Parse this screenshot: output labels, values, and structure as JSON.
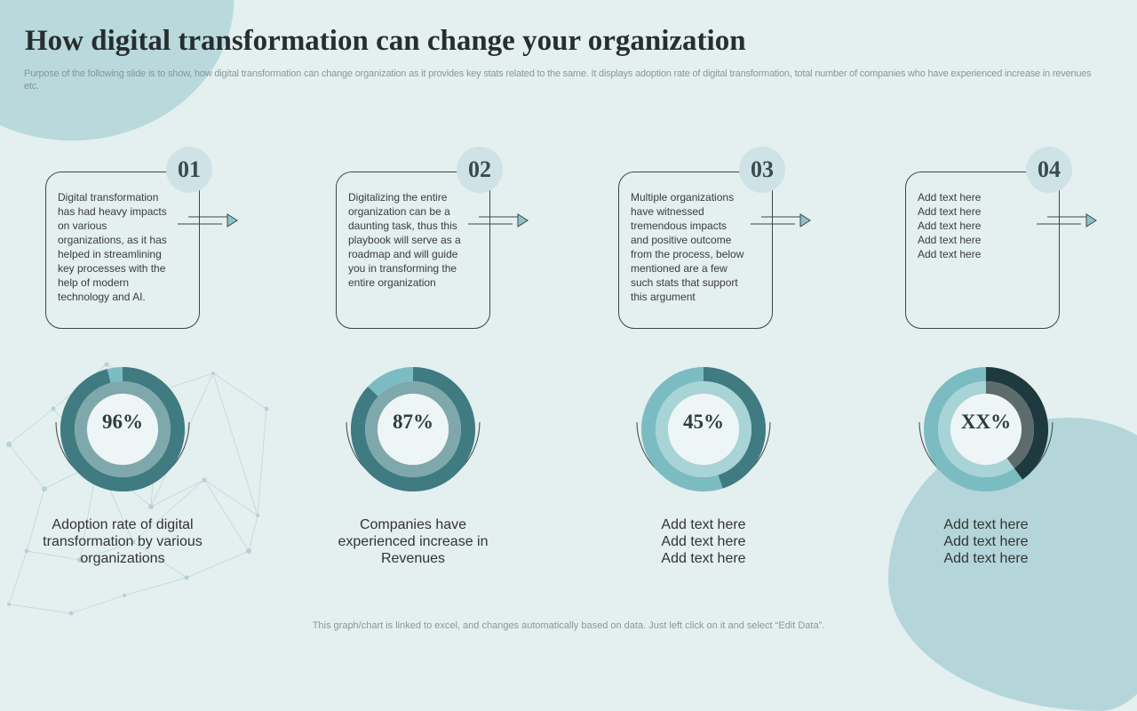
{
  "title": "How digital transformation  can change your organization",
  "subtitle": "Purpose of the following slide is to show,  how digital transformation can change organization as it provides key stats related to the same. It displays adoption rate of digital transformation, total number of companies who have experienced increase in revenues etc.",
  "colors": {
    "background": "#e4eff0",
    "dark_teal": "#3f7b80",
    "light_teal": "#7bbcc2",
    "darkest": "#1e3a3e",
    "grey_segment": "#5d6b6d"
  },
  "cards": [
    {
      "number": "01",
      "text": "Digital transformation has had heavy impacts on various organizations, as it has helped in streamlining key processes  with the help of modern technology and AI."
    },
    {
      "number": "02",
      "text": "Digitalizing the entire organization can be a daunting task, thus this playbook will serve as a roadmap and will guide you in transforming the entire organization"
    },
    {
      "number": "03",
      "text": "Multiple organizations have witnessed tremendous impacts and positive outcome from the process, below mentioned are a few such stats that support this argument"
    },
    {
      "number": "04",
      "text": "Add text here\nAdd text here\nAdd text here\nAdd text here\nAdd text here"
    }
  ],
  "stats": [
    {
      "value_label": "96%",
      "fraction": 0.96,
      "caption": "Adoption rate of digital transformation by various organizations"
    },
    {
      "value_label": "87%",
      "fraction": 0.87,
      "caption": "Companies have experienced increase in Revenues"
    },
    {
      "value_label": "45%",
      "fraction": 0.45,
      "caption": "Add text here\nAdd text here\nAdd text here"
    },
    {
      "value_label": "XX%",
      "fraction": 0.4,
      "caption": "Add text here\nAdd text here\nAdd text here"
    }
  ],
  "footer": "This graph/chart is linked to excel,  and changes automatically based on data. Just left click on it and select “Edit Data”."
}
